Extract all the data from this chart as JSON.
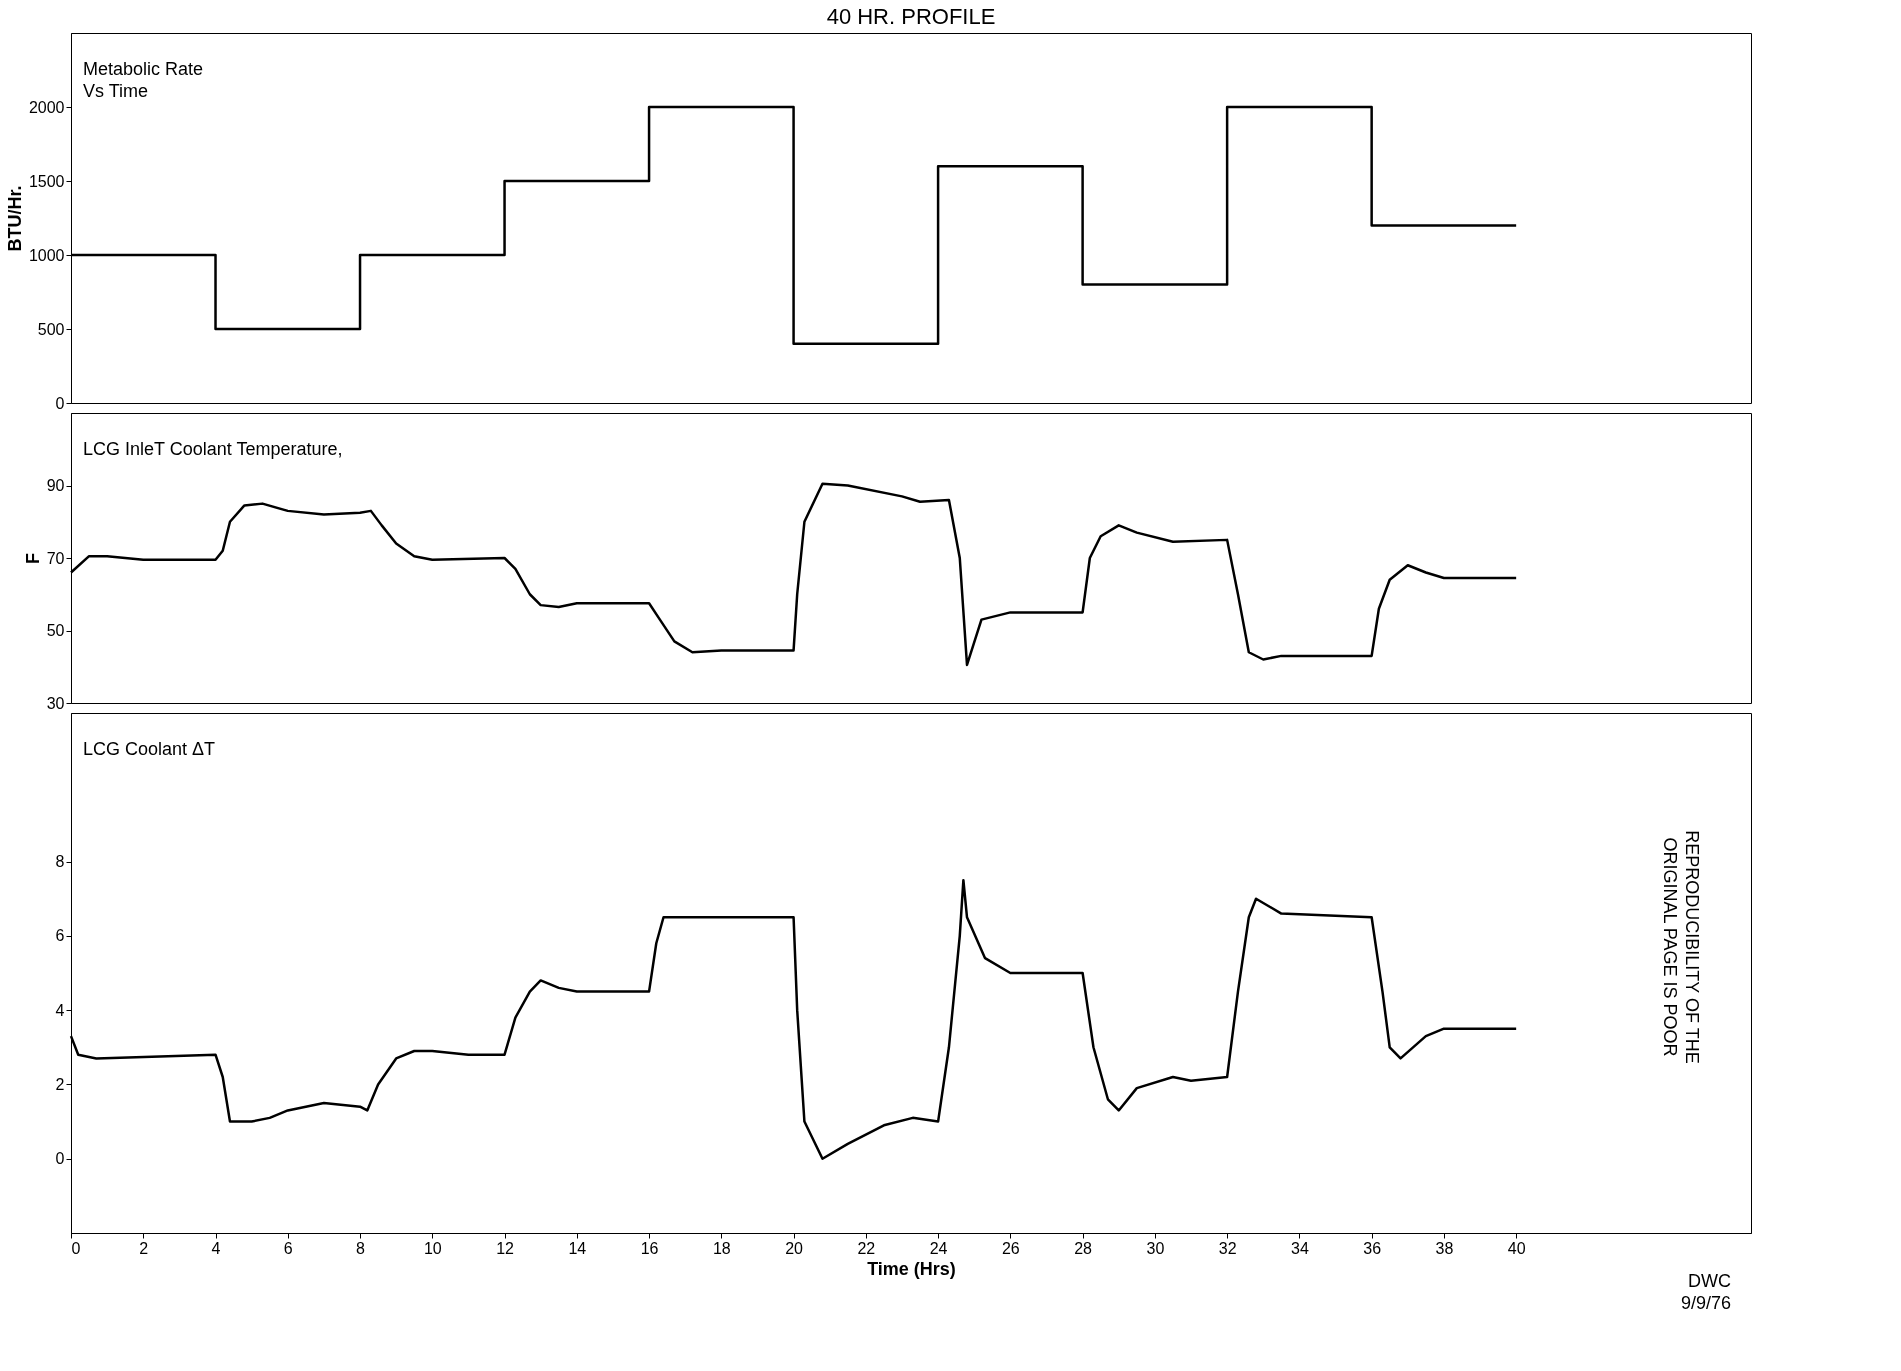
{
  "chart_data": [
    {
      "type": "step",
      "title": "40 HR. PROFILE",
      "ylabel": "BTU/Hr.",
      "annotations": [
        "Metabolic Rate\nVs Time"
      ],
      "xlim": [
        0,
        46.5
      ],
      "ylim": [
        0,
        2500
      ],
      "yticks": [
        0,
        500,
        1000,
        1500,
        2000
      ],
      "tick_labels": "y",
      "grid": false,
      "x": [
        0,
        4,
        8,
        12,
        16,
        20,
        24,
        28,
        32,
        36,
        40
      ],
      "series": [
        {
          "color": "#000000",
          "values": [
            1000,
            500,
            1000,
            1500,
            2000,
            400,
            1600,
            800,
            2000,
            1200,
            1200
          ]
        }
      ]
    },
    {
      "type": "line",
      "ylabel": "F",
      "annotations": [
        "LCG InleT Coolant Temperature,"
      ],
      "xlim": [
        0,
        46.5
      ],
      "ylim": [
        30,
        110
      ],
      "yticks": [
        30,
        50,
        70,
        90
      ],
      "tick_labels": "y",
      "grid": false,
      "x": [
        0,
        0.5,
        1,
        2,
        4,
        4.2,
        4.4,
        4.8,
        5.3,
        6,
        7,
        8,
        8.3,
        8.6,
        9,
        9.5,
        10,
        12,
        12.3,
        12.7,
        13,
        13.5,
        14,
        16,
        16.3,
        16.7,
        17.2,
        18,
        20,
        20.1,
        20.3,
        20.8,
        21.5,
        23,
        23.5,
        24.3,
        24.6,
        24.8,
        25.2,
        26,
        28,
        28.2,
        28.5,
        29,
        29.5,
        30.5,
        32,
        32.3,
        32.6,
        33,
        33.5,
        36,
        36.2,
        36.5,
        37,
        37.5,
        38,
        40
      ],
      "series": [
        {
          "color": "#000000",
          "values": [
            66,
            70.5,
            70.5,
            69.5,
            69.5,
            72,
            80,
            84.5,
            85,
            83,
            82,
            82.5,
            83,
            79,
            74,
            70.5,
            69.5,
            70,
            67,
            60,
            57,
            56.5,
            57.5,
            57.5,
            53,
            47,
            44,
            44.5,
            44.5,
            60,
            80,
            90.5,
            90,
            87,
            85.5,
            86,
            70,
            40.5,
            53,
            55,
            55,
            70,
            76,
            79,
            77,
            74.5,
            75,
            60,
            44,
            42,
            43,
            43,
            56,
            64,
            68,
            66,
            64.5,
            64.5
          ]
        }
      ]
    },
    {
      "type": "line",
      "xlabel": "Time (Hrs)",
      "annotations": [
        "LCG Coolant ΔT",
        "DWC\n9/9/76",
        "REPRODUCIBILITY OF THE\nORIGINAL PAGE IS POOR"
      ],
      "xlim": [
        0,
        46.5
      ],
      "xticks": [
        0,
        2,
        4,
        6,
        8,
        10,
        12,
        14,
        16,
        18,
        20,
        22,
        24,
        26,
        28,
        30,
        32,
        34,
        36,
        38,
        40
      ],
      "ylim": [
        -2,
        12
      ],
      "yticks": [
        0,
        2,
        4,
        6,
        8
      ],
      "grid": false,
      "x": [
        0,
        0.2,
        0.7,
        4,
        4.2,
        4.4,
        5,
        5.5,
        6,
        7,
        8,
        8.2,
        8.5,
        9,
        9.5,
        10,
        11,
        12,
        12.3,
        12.7,
        13,
        13.5,
        14,
        16,
        16.2,
        16.4,
        18,
        20,
        20.1,
        20.3,
        20.8,
        21.5,
        22.5,
        23.3,
        24,
        24.3,
        24.6,
        24.7,
        24.8,
        25.3,
        26,
        28,
        28.3,
        28.7,
        29,
        29.5,
        30.5,
        31,
        32,
        32.3,
        32.6,
        32.8,
        33.5,
        36,
        36.3,
        36.5,
        36.8,
        37.5,
        38,
        40
      ],
      "series": [
        {
          "color": "#000000",
          "values": [
            3.3,
            2.8,
            2.7,
            2.8,
            2.2,
            1.0,
            1.0,
            1.1,
            1.3,
            1.5,
            1.4,
            1.3,
            2.0,
            2.7,
            2.9,
            2.9,
            2.8,
            2.8,
            3.8,
            4.5,
            4.8,
            4.6,
            4.5,
            4.5,
            5.8,
            6.5,
            6.5,
            6.5,
            4,
            1,
            0,
            0.4,
            0.9,
            1.1,
            1.0,
            3,
            6,
            7.5,
            6.5,
            5.4,
            5.0,
            5.0,
            3,
            1.6,
            1.3,
            1.9,
            2.2,
            2.1,
            2.2,
            4.5,
            6.5,
            7.0,
            6.6,
            6.5,
            4.5,
            3,
            2.7,
            3.3,
            3.5,
            3.5
          ]
        }
      ]
    }
  ]
}
